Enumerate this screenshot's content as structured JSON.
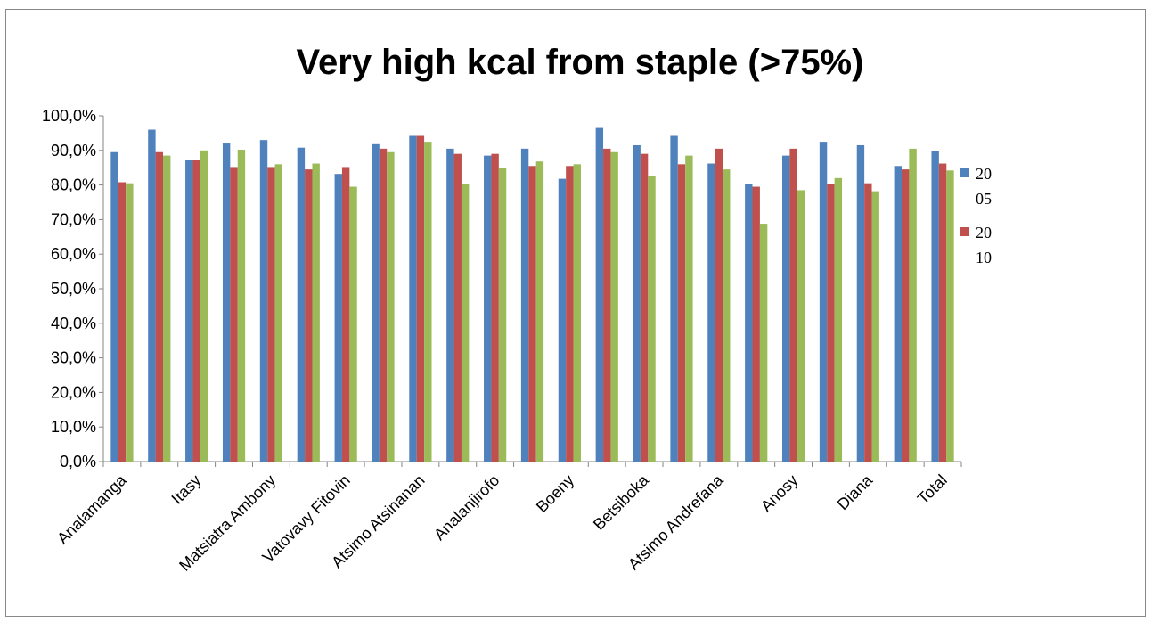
{
  "chart_data": {
    "type": "bar",
    "title": "Very high kcal from staple (>75%)",
    "xlabel": "",
    "ylabel": "",
    "ylim": [
      0,
      100
    ],
    "yticks": [
      "0,0%",
      "10,0%",
      "20,0%",
      "30,0%",
      "40,0%",
      "50,0%",
      "60,0%",
      "70,0%",
      "80,0%",
      "90,0%",
      "100,0%"
    ],
    "categories": [
      "Analamanga",
      "",
      "Itasy",
      "",
      "Matsiatra Ambony",
      "",
      "Vatovavy Fitovin",
      "",
      "Atsimo Atsinanan",
      "",
      "Analanjirofo",
      "",
      "Boeny",
      "",
      "Betsiboka",
      "",
      "Atsimo Andrefana",
      "",
      "Anosy",
      "",
      "Diana",
      "",
      "Total"
    ],
    "series": [
      {
        "name": "2005",
        "color": "#4f81bd",
        "values": [
          89.5,
          96.0,
          87.2,
          92.0,
          93.0,
          90.8,
          83.2,
          91.8,
          94.2,
          90.5,
          88.5,
          90.5,
          81.8,
          96.5,
          91.5,
          94.2,
          86.2,
          80.2,
          88.5,
          92.5,
          91.5,
          85.5,
          89.8
        ]
      },
      {
        "name": "2010",
        "color": "#c0504d",
        "values": [
          80.8,
          89.5,
          87.2,
          85.2,
          85.2,
          84.5,
          85.2,
          90.5,
          94.2,
          89.0,
          89.0,
          85.5,
          85.5,
          90.5,
          89.0,
          86.0,
          90.5,
          79.5,
          90.5,
          80.2,
          80.5,
          84.5,
          86.2
        ]
      },
      {
        "name": "",
        "color": "#9bbb59",
        "values": [
          80.5,
          88.5,
          90.0,
          90.2,
          86.0,
          86.2,
          79.5,
          89.5,
          92.5,
          80.2,
          84.8,
          86.8,
          86.0,
          89.5,
          82.5,
          88.5,
          84.5,
          68.8,
          78.5,
          82.0,
          78.2,
          90.5,
          84.2
        ]
      }
    ],
    "legend": {
      "placement": "right",
      "entries": [
        {
          "line1": "20",
          "line2": "05"
        },
        {
          "line1": "20",
          "line2": "10"
        }
      ]
    },
    "grid": false
  }
}
